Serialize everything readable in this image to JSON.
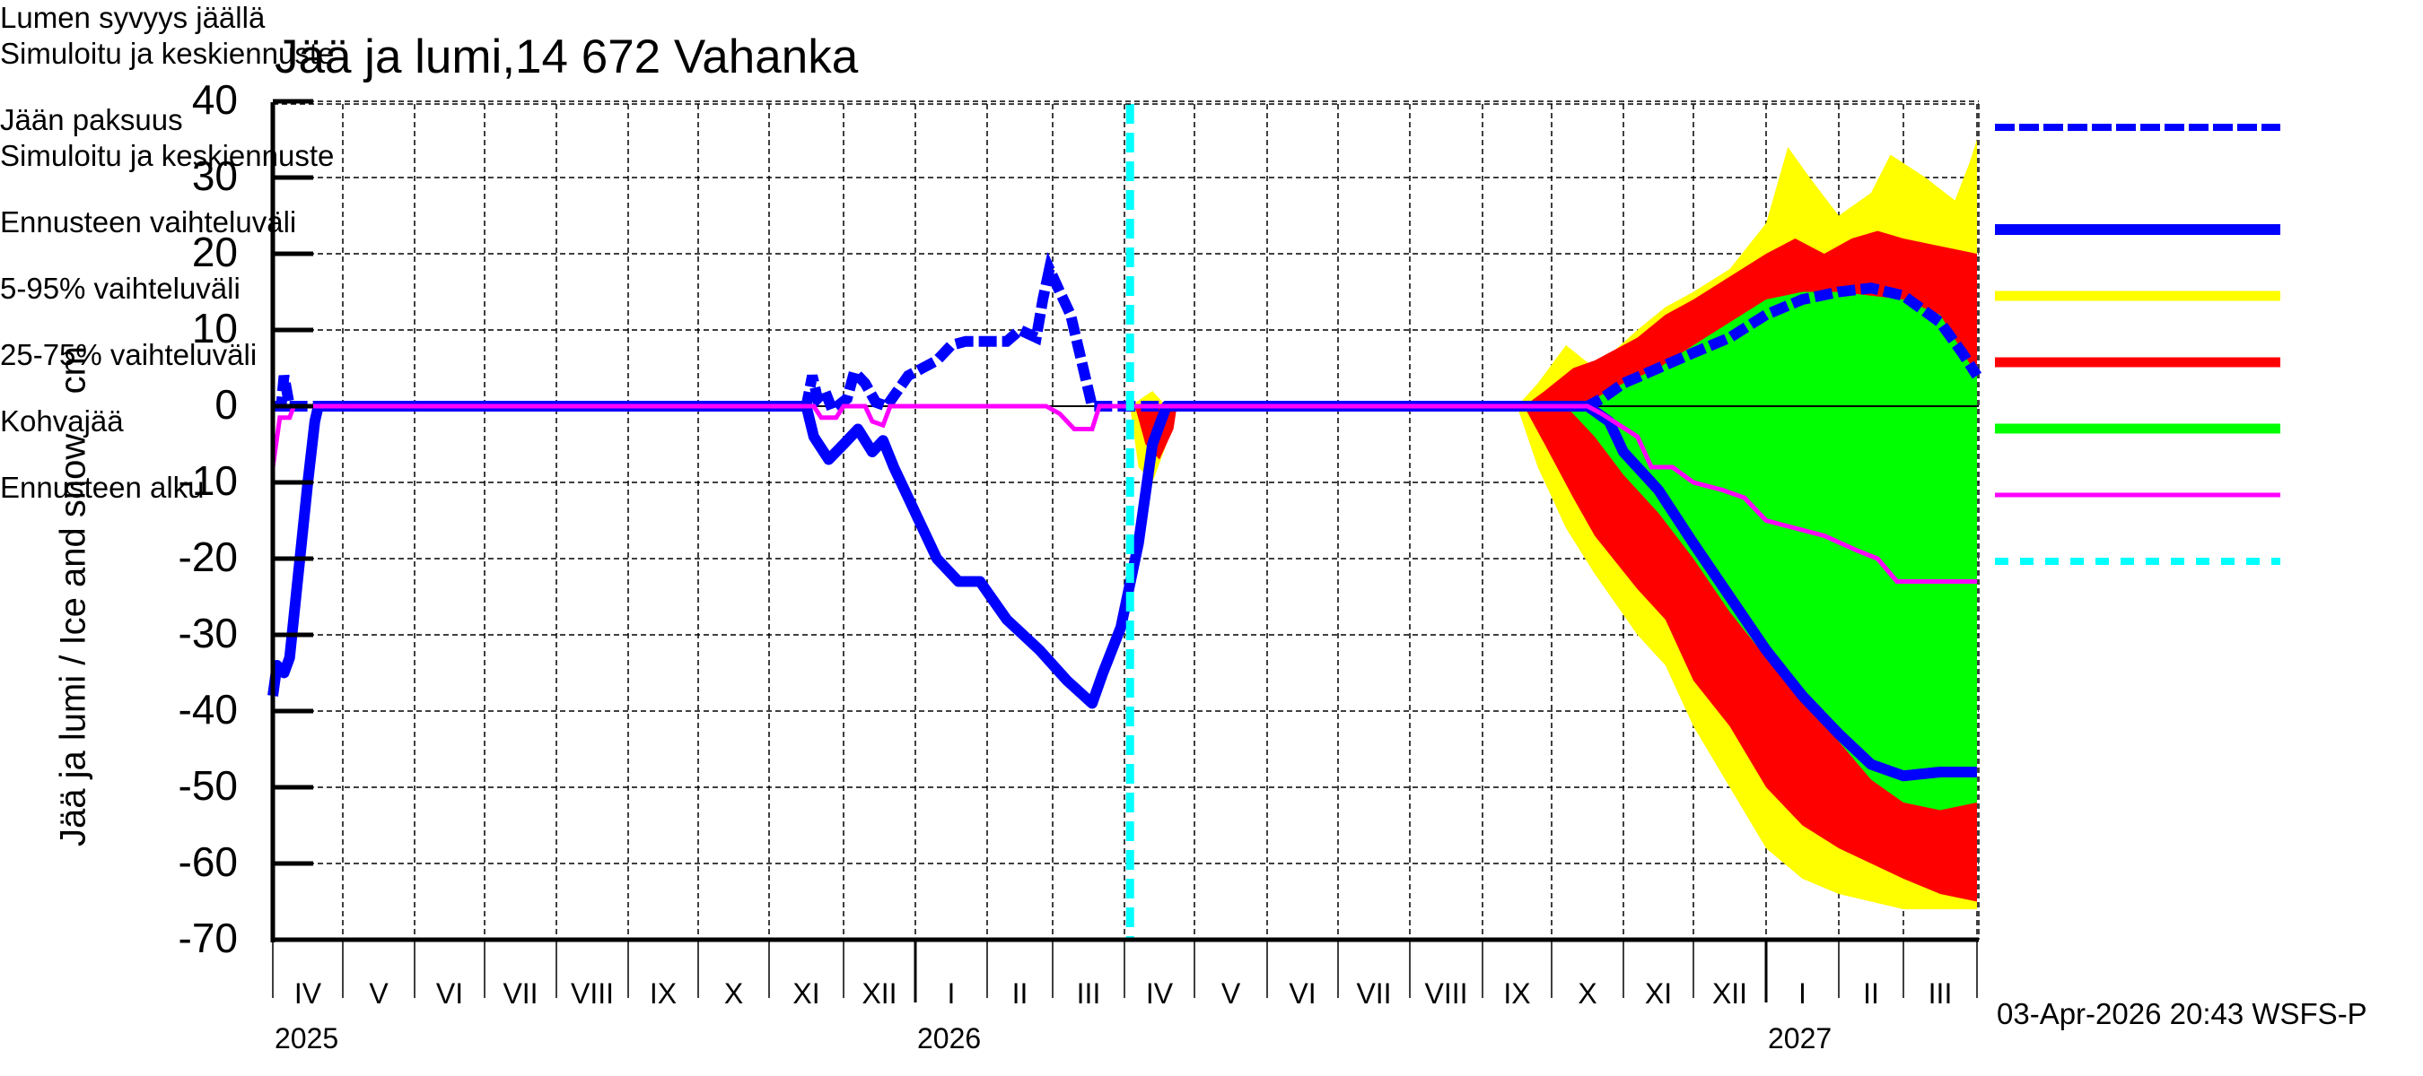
{
  "title": "Jää ja lumi,14 672 Vahanka",
  "y_axis_label": "Jää ja lumi / Ice and snow    cm",
  "timestamp": "03-Apr-2026 20:43 WSFS-P",
  "y_ticks": [
    "40",
    "30",
    "20",
    "10",
    "0",
    "-10",
    "-20",
    "-30",
    "-40",
    "-50",
    "-60",
    "-70"
  ],
  "month_labels": [
    "IV",
    "V",
    "VI",
    "VII",
    "VIII",
    "IX",
    "X",
    "XI",
    "XII",
    "I",
    "II",
    "III",
    "IV",
    "V",
    "VI",
    "VII",
    "VIII",
    "IX",
    "X",
    "XI",
    "XII",
    "I",
    "II",
    "III"
  ],
  "year_labels": [
    {
      "label": "2025",
      "month_index": 0
    },
    {
      "label": "2026",
      "month_index": 9
    },
    {
      "label": "2027",
      "month_index": 21
    }
  ],
  "legend": [
    {
      "line1": "Lumen syvyys jäällä",
      "line2": "Simuloitu ja keskiennuste",
      "color": "#0000ff",
      "style": "dashed-thick"
    },
    {
      "line1": "Jään paksuus",
      "line2": "Simuloitu ja keskiennuste",
      "color": "#0000ff",
      "style": "solid-thick"
    },
    {
      "line1": "Ennusteen vaihteluväli",
      "color": "#ffff00",
      "style": "band"
    },
    {
      "line1": "5-95% vaihteluväli",
      "color": "#ff0000",
      "style": "band"
    },
    {
      "line1": "25-75% vaihteluväli",
      "color": "#00ff00",
      "style": "band"
    },
    {
      "line1": "Kohvajää",
      "color": "#ff00ff",
      "style": "solid-thin"
    },
    {
      "line1": "Ennusteen alku",
      "color": "#00ffff",
      "style": "dashed-cyan"
    }
  ],
  "colors": {
    "snow": "#0000ff",
    "ice": "#0000ff",
    "range": "#ffff00",
    "p5_95": "#ff0000",
    "p25_75": "#00ff00",
    "slush": "#ff00ff",
    "forecast_start": "#00ffff"
  },
  "chart_data": {
    "type": "area",
    "title": "Jää ja lumi,14 672 Vahanka",
    "xlabel": "",
    "ylabel": "Jää ja lumi / Ice and snow cm",
    "ylim": [
      -70,
      40
    ],
    "xlim_months": [
      0,
      24
    ],
    "x_unit": "months since 2025-04-01",
    "grid": true,
    "legend_position": "right",
    "forecast_start_month": 12.08,
    "series": [
      {
        "name": "Lumen syvyys jäällä (snow depth on ice, simulated & mean forecast)",
        "style": "dashed",
        "positive": true,
        "points": [
          [
            0,
            0
          ],
          [
            0.12,
            0
          ],
          [
            0.16,
            4
          ],
          [
            0.2,
            2
          ],
          [
            0.24,
            0
          ],
          [
            0.5,
            0
          ],
          [
            7.5,
            0
          ],
          [
            7.58,
            4
          ],
          [
            7.65,
            1
          ],
          [
            7.75,
            2
          ],
          [
            7.85,
            -0.5
          ],
          [
            8.05,
            1
          ],
          [
            8.15,
            4.5
          ],
          [
            8.3,
            3
          ],
          [
            8.45,
            0.5
          ],
          [
            8.6,
            0
          ],
          [
            8.75,
            2
          ],
          [
            8.9,
            4
          ],
          [
            9.1,
            5
          ],
          [
            9.3,
            6
          ],
          [
            9.5,
            8
          ],
          [
            9.7,
            8.5
          ],
          [
            10.0,
            8.5
          ],
          [
            10.3,
            8.5
          ],
          [
            10.5,
            10
          ],
          [
            10.75,
            9
          ],
          [
            10.85,
            14
          ],
          [
            10.95,
            18
          ],
          [
            11.1,
            15
          ],
          [
            11.25,
            12
          ],
          [
            11.4,
            6
          ],
          [
            11.55,
            0
          ],
          [
            12.08,
            0
          ],
          [
            17.4,
            0
          ],
          [
            18.5,
            0
          ],
          [
            18.7,
            1
          ],
          [
            19.0,
            3
          ],
          [
            19.5,
            5
          ],
          [
            20.0,
            7
          ],
          [
            20.5,
            9
          ],
          [
            21.0,
            12
          ],
          [
            21.5,
            14
          ],
          [
            22.0,
            15
          ],
          [
            22.5,
            15.5
          ],
          [
            23.0,
            14.5
          ],
          [
            23.5,
            11
          ],
          [
            23.8,
            7
          ],
          [
            24.0,
            4
          ]
        ]
      },
      {
        "name": "Jään paksuus (ice thickness, simulated & mean forecast)",
        "style": "solid",
        "points": [
          [
            0,
            -38
          ],
          [
            0.06,
            -34
          ],
          [
            0.16,
            -35
          ],
          [
            0.24,
            -33
          ],
          [
            0.5,
            -10
          ],
          [
            0.6,
            -2
          ],
          [
            0.65,
            0
          ],
          [
            7.5,
            0
          ],
          [
            7.6,
            -4
          ],
          [
            7.8,
            -7
          ],
          [
            8.0,
            -5
          ],
          [
            8.2,
            -3
          ],
          [
            8.4,
            -6
          ],
          [
            8.55,
            -4.5
          ],
          [
            8.7,
            -8
          ],
          [
            9.0,
            -14
          ],
          [
            9.3,
            -20
          ],
          [
            9.6,
            -23
          ],
          [
            9.9,
            -23
          ],
          [
            10.3,
            -28
          ],
          [
            10.8,
            -32
          ],
          [
            11.2,
            -36
          ],
          [
            11.55,
            -39
          ],
          [
            11.7,
            -35
          ],
          [
            11.95,
            -29
          ],
          [
            12.2,
            -18
          ],
          [
            12.4,
            -5
          ],
          [
            12.6,
            0
          ],
          [
            18.5,
            0
          ],
          [
            18.8,
            -2
          ],
          [
            19.0,
            -6
          ],
          [
            19.5,
            -11
          ],
          [
            20.0,
            -18
          ],
          [
            20.5,
            -25
          ],
          [
            21.0,
            -32
          ],
          [
            21.5,
            -38
          ],
          [
            22.0,
            -43
          ],
          [
            22.5,
            -47
          ],
          [
            23.0,
            -48.5
          ],
          [
            23.5,
            -48
          ],
          [
            24.0,
            -48
          ]
        ]
      },
      {
        "name": "Kohvajää (slush ice)",
        "style": "solid-thin",
        "points": [
          [
            0,
            -8
          ],
          [
            0.1,
            -1.5
          ],
          [
            0.24,
            -1.5
          ],
          [
            0.3,
            0
          ],
          [
            7.6,
            0
          ],
          [
            7.7,
            -1.5
          ],
          [
            7.9,
            -1.5
          ],
          [
            8.0,
            0
          ],
          [
            8.3,
            0
          ],
          [
            8.4,
            -2
          ],
          [
            8.55,
            -2.5
          ],
          [
            8.65,
            0
          ],
          [
            10.9,
            0
          ],
          [
            11.1,
            -1
          ],
          [
            11.3,
            -3
          ],
          [
            11.55,
            -3
          ],
          [
            11.65,
            0
          ],
          [
            18.5,
            0
          ],
          [
            18.7,
            -1
          ],
          [
            19.2,
            -4
          ],
          [
            19.4,
            -8
          ],
          [
            19.7,
            -8
          ],
          [
            20.0,
            -10
          ],
          [
            20.4,
            -11
          ],
          [
            20.7,
            -12
          ],
          [
            21.0,
            -15
          ],
          [
            21.4,
            -16
          ],
          [
            21.8,
            -17
          ],
          [
            22.3,
            -19
          ],
          [
            22.6,
            -20
          ],
          [
            22.9,
            -23
          ],
          [
            24.0,
            -23
          ]
        ]
      },
      {
        "name": "Ennusteen vaihteluväli (forecast range)",
        "kind": "band",
        "color": "#ffff00",
        "upper": [
          [
            12.08,
            0
          ],
          [
            12.4,
            2
          ],
          [
            12.6,
            0
          ],
          [
            12.75,
            0
          ],
          [
            17.5,
            0
          ],
          [
            17.8,
            3
          ],
          [
            18.2,
            8
          ],
          [
            18.6,
            5
          ],
          [
            19.2,
            10
          ],
          [
            19.6,
            13
          ],
          [
            20.0,
            15
          ],
          [
            20.5,
            18
          ],
          [
            21.0,
            24
          ],
          [
            21.3,
            34
          ],
          [
            21.6,
            30
          ],
          [
            22.0,
            25
          ],
          [
            22.5,
            28
          ],
          [
            22.8,
            33
          ],
          [
            23.3,
            30
          ],
          [
            23.7,
            27
          ],
          [
            23.9,
            32
          ],
          [
            24.0,
            35
          ]
        ],
        "lower": [
          [
            12.08,
            0
          ],
          [
            12.2,
            -8
          ],
          [
            12.4,
            -10
          ],
          [
            12.6,
            -5
          ],
          [
            12.75,
            0
          ],
          [
            17.5,
            0
          ],
          [
            17.8,
            -8
          ],
          [
            18.2,
            -16
          ],
          [
            18.6,
            -22
          ],
          [
            19.2,
            -30
          ],
          [
            19.6,
            -34
          ],
          [
            20.0,
            -42
          ],
          [
            20.5,
            -50
          ],
          [
            21.0,
            -58
          ],
          [
            21.5,
            -62
          ],
          [
            22.0,
            -64
          ],
          [
            22.5,
            -65
          ],
          [
            23.0,
            -66
          ],
          [
            23.5,
            -66
          ],
          [
            24.0,
            -66
          ]
        ]
      },
      {
        "name": "5-95% vaihteluväli",
        "kind": "band",
        "color": "#ff0000",
        "upper": [
          [
            12.15,
            0
          ],
          [
            12.4,
            0
          ],
          [
            12.75,
            0
          ],
          [
            17.6,
            0
          ],
          [
            17.9,
            2
          ],
          [
            18.3,
            5
          ],
          [
            18.6,
            6
          ],
          [
            19.2,
            9
          ],
          [
            19.6,
            12
          ],
          [
            20.0,
            14
          ],
          [
            20.5,
            17
          ],
          [
            21.0,
            20
          ],
          [
            21.4,
            22
          ],
          [
            21.8,
            20
          ],
          [
            22.2,
            22
          ],
          [
            22.6,
            23
          ],
          [
            23.0,
            22
          ],
          [
            23.5,
            21
          ],
          [
            24.0,
            20
          ]
        ],
        "lower": [
          [
            12.15,
            0
          ],
          [
            12.3,
            -5
          ],
          [
            12.5,
            -7
          ],
          [
            12.7,
            -3
          ],
          [
            12.75,
            0
          ],
          [
            17.6,
            0
          ],
          [
            17.9,
            -5
          ],
          [
            18.3,
            -12
          ],
          [
            18.6,
            -17
          ],
          [
            19.2,
            -24
          ],
          [
            19.6,
            -28
          ],
          [
            20.0,
            -36
          ],
          [
            20.5,
            -42
          ],
          [
            21.0,
            -50
          ],
          [
            21.5,
            -55
          ],
          [
            22.0,
            -58
          ],
          [
            22.5,
            -60
          ],
          [
            23.0,
            -62
          ],
          [
            23.5,
            -64
          ],
          [
            24.0,
            -65
          ]
        ]
      },
      {
        "name": "25-75% vaihteluväli",
        "kind": "band",
        "color": "#00ff00",
        "upper": [
          [
            18.2,
            0
          ],
          [
            18.6,
            1
          ],
          [
            19.0,
            3
          ],
          [
            19.5,
            5
          ],
          [
            20.0,
            8
          ],
          [
            20.5,
            11
          ],
          [
            21.0,
            14
          ],
          [
            21.5,
            15
          ],
          [
            22.0,
            15
          ],
          [
            22.5,
            14.5
          ],
          [
            23.0,
            14
          ],
          [
            23.5,
            12
          ],
          [
            24.0,
            4
          ]
        ],
        "lower": [
          [
            18.2,
            0
          ],
          [
            18.6,
            -4
          ],
          [
            19.0,
            -9
          ],
          [
            19.5,
            -14
          ],
          [
            20.0,
            -20
          ],
          [
            20.5,
            -27
          ],
          [
            21.0,
            -33
          ],
          [
            21.5,
            -39
          ],
          [
            22.0,
            -44
          ],
          [
            22.5,
            -49
          ],
          [
            23.0,
            -52
          ],
          [
            23.5,
            -53
          ],
          [
            24.0,
            -52
          ]
        ]
      }
    ]
  }
}
